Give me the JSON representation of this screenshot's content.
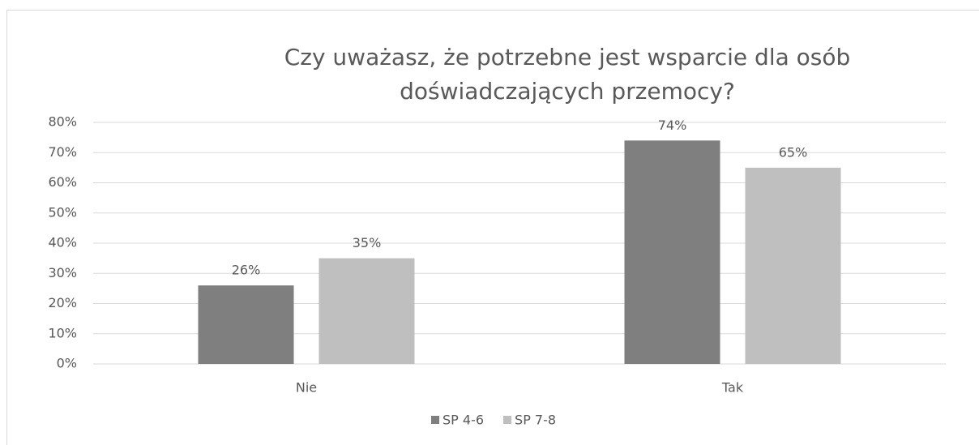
{
  "chart_data": {
    "type": "bar",
    "title": [
      "Czy uważasz, że potrzebne jest wsparcie dla osób",
      "doświadczających przemocy?"
    ],
    "categories": [
      "Nie",
      "Tak"
    ],
    "series": [
      {
        "name": "SP 4-6",
        "color": "#7f7f7f",
        "values": [
          26,
          74
        ],
        "value_labels": [
          "26%",
          "74%"
        ]
      },
      {
        "name": "SP 7-8",
        "color": "#bfbfbf",
        "values": [
          35,
          65
        ],
        "value_labels": [
          "35%",
          "65%"
        ]
      }
    ],
    "ylim": [
      0,
      80
    ],
    "yticks": [
      {
        "value": 0,
        "label": "0%"
      },
      {
        "value": 10,
        "label": "10%"
      },
      {
        "value": 20,
        "label": "20%"
      },
      {
        "value": 30,
        "label": "30%"
      },
      {
        "value": 40,
        "label": "40%"
      },
      {
        "value": 50,
        "label": "50%"
      },
      {
        "value": 60,
        "label": "60%"
      },
      {
        "value": 70,
        "label": "70%"
      },
      {
        "value": 80,
        "label": "80%"
      }
    ],
    "grid": true,
    "legend": "bottom"
  }
}
